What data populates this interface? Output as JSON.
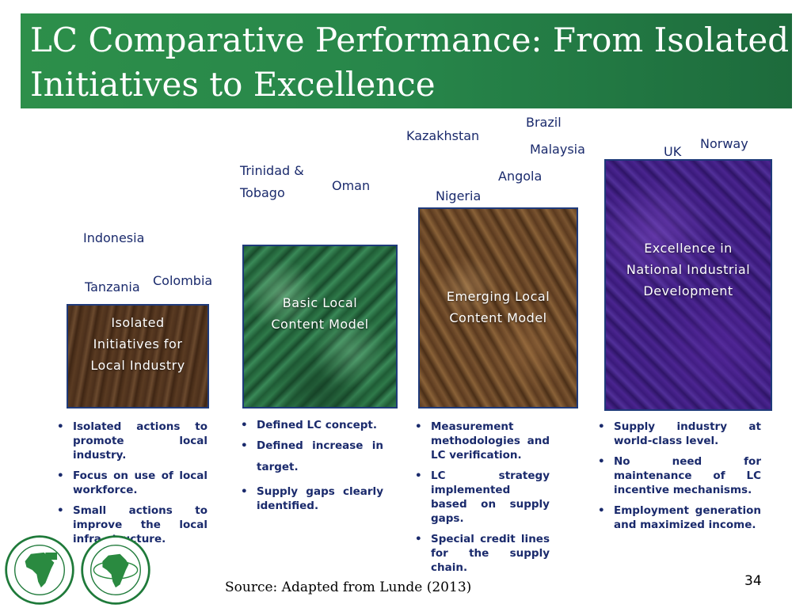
{
  "slide": {
    "title": "LC Comparative Performance: From Isolated Initiatives to Excellence",
    "source": "Source: Adapted from Lunde  (2013)",
    "page_number": "34"
  },
  "stages": [
    {
      "label": "Isolated Initiatives for Local Industry",
      "countries": [
        "Indonesia",
        "Tanzania",
        "Colombia"
      ],
      "bullets": [
        "Isolated actions to promote local industry.",
        "Focus on use of local workforce.",
        "Small actions to improve the local infra-structure."
      ]
    },
    {
      "label": "Basic Local Content Model",
      "countries": [
        "Trinidad   &",
        "Tobago",
        "Oman"
      ],
      "bullets": [
        "Defined LC concept.",
        "Defined increase in target.",
        "Supply gaps clearly identified."
      ]
    },
    {
      "label": "Emerging Local Content Model",
      "countries": [
        "Kazakhstan",
        "Nigeria",
        "Angola",
        "Brazil",
        "Malaysia"
      ],
      "bullets": [
        "Measurement methodologies and LC verification.",
        "LC strategy implemented based on supply gaps.",
        "Special credit lines for the supply chain."
      ]
    },
    {
      "label": "Excellence in National Industrial Development",
      "countries": [
        "UK",
        "Norway"
      ],
      "bullets": [
        "Supply industry at world-class level.",
        "No need for maintenance of LC incentive mechanisms.",
        "Employment generation and maximized income."
      ]
    }
  ],
  "logos": [
    {
      "icon": "afdb-logo-french-icon"
    },
    {
      "icon": "adf-logo-english-icon"
    }
  ],
  "colors": {
    "title_bar": "#2d8f4a",
    "text": "#1a2a6c",
    "stage_1": "#5a3b22",
    "stage_2": "#1f5b35",
    "stage_3": "#5b3a1f",
    "stage_4": "#3a1a7a"
  }
}
